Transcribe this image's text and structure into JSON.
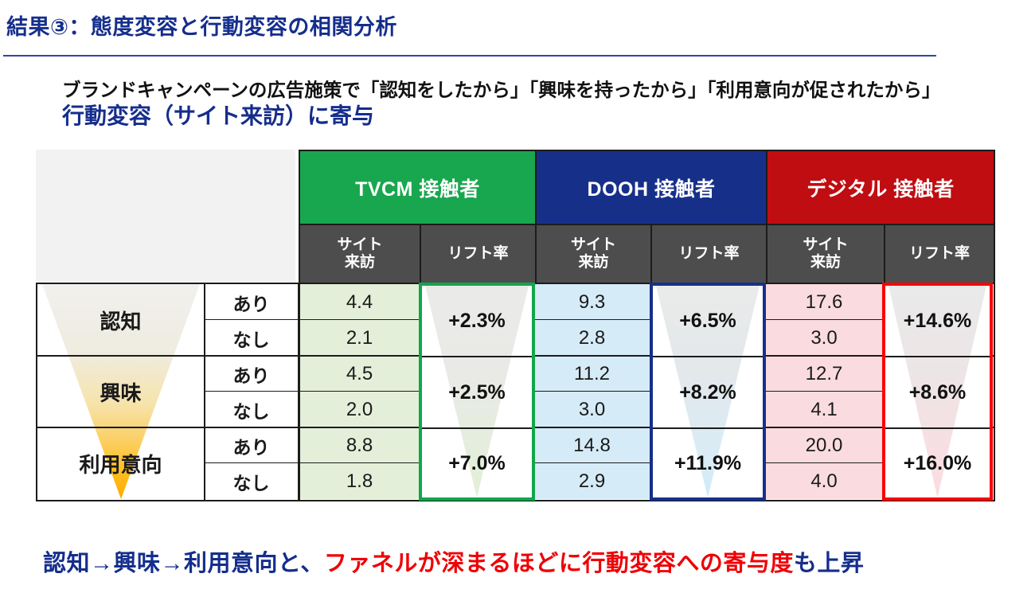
{
  "slide": {
    "title": "結果③：態度変容と行動変容の相関分析",
    "lead_line1": "ブランドキャンペーンの広告施策で「認知をしたから」「興味を持ったから」「利用意向が促されたから」",
    "lead_line2": "行動変容（サイト来訪）に寄与",
    "conclusion_part1": "認知→興味→利用意向と、",
    "conclusion_part2": "ファネルが深まるほどに行動変容への寄与度",
    "conclusion_part3": "も上昇"
  },
  "table": {
    "sub_headers": {
      "visit": "サイト来訪",
      "lift": "リフト率"
    },
    "stages": [
      {
        "label": "認知",
        "row1": "あり",
        "row2": "なし"
      },
      {
        "label": "興味",
        "row1": "あり",
        "row2": "なし"
      },
      {
        "label": "利用意向",
        "row1": "あり",
        "row2": "なし"
      }
    ],
    "channels": [
      {
        "name": "TVCM 接触者",
        "header_color": "#18a74e",
        "cell_color": "#e4efda",
        "box_border_color": "#11a64b",
        "visits": [
          "4.4",
          "2.1",
          "4.5",
          "2.0",
          "8.8",
          "1.8"
        ],
        "lifts": [
          "+2.3%",
          "+2.5%",
          "+7.0%"
        ]
      },
      {
        "name": "DOOH 接触者",
        "header_color": "#16308a",
        "cell_color": "#d6ebf8",
        "box_border_color": "#16308a",
        "visits": [
          "9.3",
          "2.8",
          "11.2",
          "3.0",
          "14.8",
          "2.9"
        ],
        "lifts": [
          "+6.5%",
          "+8.2%",
          "+11.9%"
        ]
      },
      {
        "name": "デジタル 接触者",
        "header_color": "#c00d12",
        "cell_color": "#fadbe0",
        "box_border_color": "#fb0205",
        "visits": [
          "17.6",
          "3.0",
          "12.7",
          "4.1",
          "20.0",
          "4.0"
        ],
        "lifts": [
          "+14.6%",
          "+8.6%",
          "+16.0%"
        ]
      }
    ]
  },
  "colors": {
    "title_blue": "#152e8c",
    "conclusion_red": "#ee0005",
    "subheader_gray": "#4d4d4d",
    "corner_gray": "#f2f2f2",
    "funnel_amber": "#ffaa00",
    "border_black": "#1c1c1c"
  },
  "chart_data": {
    "type": "table",
    "title": "態度変容と行動変容の相関分析（サイト来訪率とリフト率）",
    "stages": [
      "認知",
      "興味",
      "利用意向"
    ],
    "condition_labels": [
      "あり",
      "なし"
    ],
    "series": [
      {
        "name": "TVCM 接触者",
        "visit_with": [
          4.4,
          4.5,
          8.8
        ],
        "visit_without": [
          2.1,
          2.0,
          1.8
        ],
        "lift": [
          "+2.3%",
          "+2.5%",
          "+7.0%"
        ]
      },
      {
        "name": "DOOH 接触者",
        "visit_with": [
          9.3,
          11.2,
          14.8
        ],
        "visit_without": [
          2.8,
          3.0,
          2.9
        ],
        "lift": [
          "+6.5%",
          "+8.2%",
          "+11.9%"
        ]
      },
      {
        "name": "デジタル 接触者",
        "visit_with": [
          17.6,
          12.7,
          20.0
        ],
        "visit_without": [
          3.0,
          4.1,
          4.0
        ],
        "lift": [
          "+14.6%",
          "+8.6%",
          "+16.0%"
        ]
      }
    ]
  }
}
